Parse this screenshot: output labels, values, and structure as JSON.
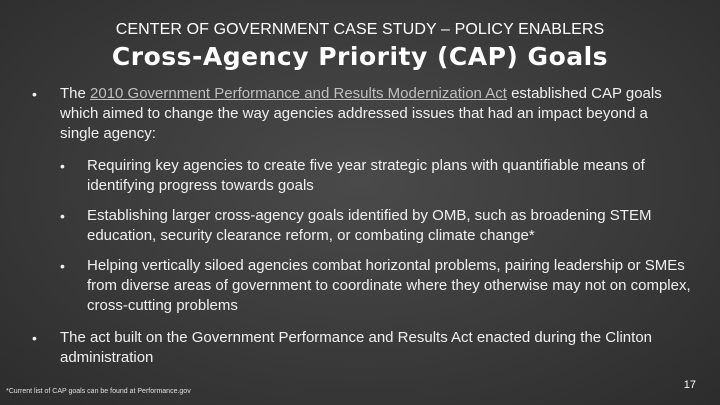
{
  "header": {
    "kicker": "CENTER OF GOVERNMENT CASE STUDY – POLICY ENABLERS",
    "title": "Cross-Agency Priority (CAP) Goals"
  },
  "bullets": {
    "main1": {
      "marker": "•",
      "prefix": "The ",
      "link_text": "2010 Government Performance and Results Modernization Act",
      "suffix": " established CAP goals which aimed to change the way agencies addressed issues that had an impact beyond a single agency:"
    },
    "subs": [
      {
        "marker": "•",
        "text": "Requiring key agencies to create five year strategic plans with quantifiable means of identifying progress towards goals"
      },
      {
        "marker": "•",
        "text": "Establishing larger cross-agency goals identified by OMB, such as broadening STEM education, security clearance reform, or combating climate change*"
      },
      {
        "marker": "•",
        "text": "Helping vertically siloed agencies combat horizontal problems, pairing leadership or SMEs from diverse areas of government to coordinate where they otherwise may not on complex, cross-cutting problems"
      }
    ],
    "main2": {
      "marker": "•",
      "text": "The act built on the Government Performance and Results Act enacted during the Clinton administration"
    }
  },
  "footer": {
    "footnote": "*Current list of CAP goals can be found at Performance.gov",
    "page_number": "17"
  }
}
